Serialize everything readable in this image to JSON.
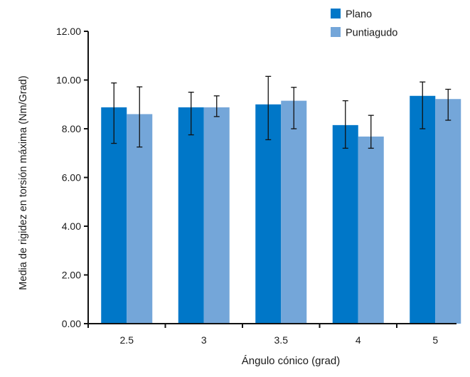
{
  "chart_data": {
    "type": "bar",
    "title": "",
    "xlabel": "Ángulo cónico (grad)",
    "ylabel": "Media de rigidez en torsión máxima  (Nm/Grad)",
    "categories": [
      "2.5",
      "3",
      "3.5",
      "4",
      "5"
    ],
    "ylim": [
      0,
      12
    ],
    "yticks": [
      "0.00",
      "2.00",
      "4.00",
      "6.00",
      "8.00",
      "10.00",
      "12.00"
    ],
    "grid": false,
    "legend_position": "top-right",
    "series": [
      {
        "name": "Plano",
        "color": "#0077c8",
        "values": [
          8.88,
          8.88,
          9.0,
          8.15,
          9.35
        ],
        "error_low": [
          7.4,
          7.75,
          7.55,
          7.2,
          8.0
        ],
        "error_high": [
          9.88,
          9.5,
          10.15,
          9.15,
          9.92
        ]
      },
      {
        "name": "Puntiagudo",
        "color": "#74a6d9",
        "values": [
          8.6,
          8.88,
          9.15,
          7.68,
          9.22
        ],
        "error_low": [
          7.25,
          8.5,
          8.0,
          7.2,
          8.35
        ],
        "error_high": [
          9.72,
          9.35,
          9.7,
          8.55,
          9.62
        ]
      }
    ]
  }
}
